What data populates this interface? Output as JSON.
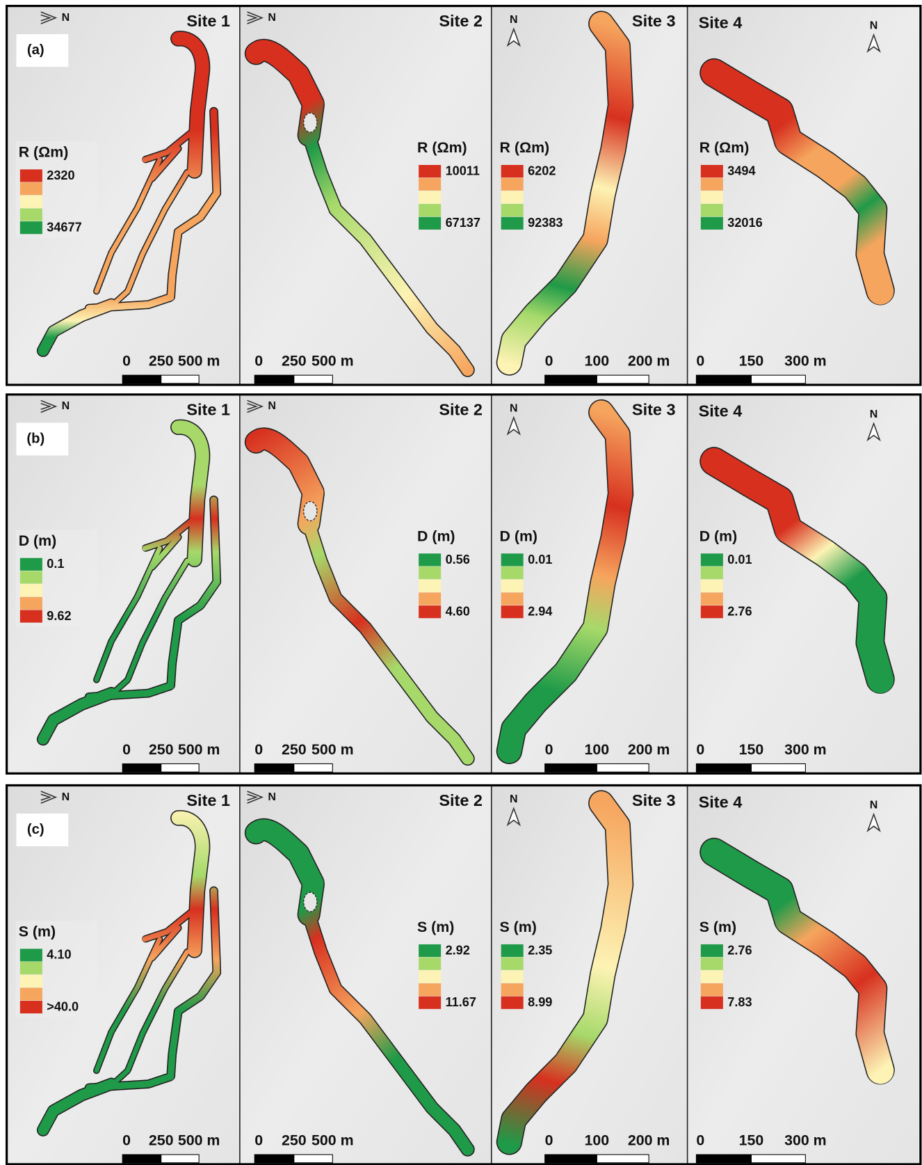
{
  "rows": [
    {
      "label": "(a)",
      "legend_colors": [
        "#d7301f",
        "#f6a55e",
        "#fdf3b4",
        "#a6d96a",
        "#1f9a48"
      ],
      "panels": [
        {
          "site": "Site 1",
          "north": "N",
          "legend": {
            "title": "R (Ωm)",
            "labels": [
              "2320",
              "34677"
            ]
          },
          "scale": [
            "0",
            "250",
            "500 m"
          ]
        },
        {
          "site": "Site 2",
          "north": "N",
          "legend": {
            "title": "R (Ωm)",
            "labels": [
              "10011",
              "67137"
            ]
          },
          "scale": [
            "0",
            "250",
            "500 m"
          ]
        },
        {
          "site": "Site 3",
          "north": "N",
          "legend": {
            "title": "R (Ωm)",
            "labels": [
              "6202",
              "92383"
            ]
          },
          "scale": [
            "0",
            "100",
            "200 m"
          ]
        },
        {
          "site": "Site 4",
          "north": "N",
          "legend": {
            "title": "R (Ωm)",
            "labels": [
              "3494",
              "32016"
            ]
          },
          "scale": [
            "0",
            "150",
            "300 m"
          ]
        }
      ]
    },
    {
      "label": "(b)",
      "legend_colors": [
        "#1f9a48",
        "#a6d96a",
        "#fdf3b4",
        "#f6a55e",
        "#d7301f"
      ],
      "panels": [
        {
          "site": "Site 1",
          "north": "N",
          "legend": {
            "title": "D (m)",
            "labels": [
              "0.1",
              "9.62"
            ]
          },
          "scale": [
            "0",
            "250",
            "500 m"
          ]
        },
        {
          "site": "Site 2",
          "north": "N",
          "legend": {
            "title": "D (m)",
            "labels": [
              "0.56",
              "4.60"
            ]
          },
          "scale": [
            "0",
            "250",
            "500 m"
          ]
        },
        {
          "site": "Site 3",
          "north": "N",
          "legend": {
            "title": "D (m)",
            "labels": [
              "0.01",
              "2.94"
            ]
          },
          "scale": [
            "0",
            "100",
            "200 m"
          ]
        },
        {
          "site": "Site 4",
          "north": "N",
          "legend": {
            "title": "D (m)",
            "labels": [
              "0.01",
              "2.76"
            ]
          },
          "scale": [
            "0",
            "150",
            "300 m"
          ]
        }
      ]
    },
    {
      "label": "(c)",
      "legend_colors": [
        "#1f9a48",
        "#a6d96a",
        "#fdf3b4",
        "#f6a55e",
        "#d7301f"
      ],
      "panels": [
        {
          "site": "Site 1",
          "north": "N",
          "legend": {
            "title": "S (m)",
            "labels": [
              "4.10",
              ">40.0"
            ]
          },
          "scale": [
            "0",
            "250",
            "500 m"
          ]
        },
        {
          "site": "Site 2",
          "north": "N",
          "legend": {
            "title": "S (m)",
            "labels": [
              "2.92",
              "11.67"
            ]
          },
          "scale": [
            "0",
            "250",
            "500 m"
          ]
        },
        {
          "site": "Site 3",
          "north": "N",
          "legend": {
            "title": "S (m)",
            "labels": [
              "2.35",
              "8.99"
            ]
          },
          "scale": [
            "0",
            "100",
            "200 m"
          ]
        },
        {
          "site": "Site 4",
          "north": "N",
          "legend": {
            "title": "S (m)",
            "labels": [
              "2.76",
              "7.83"
            ]
          },
          "scale": [
            "0",
            "150",
            "300 m"
          ]
        }
      ]
    }
  ]
}
